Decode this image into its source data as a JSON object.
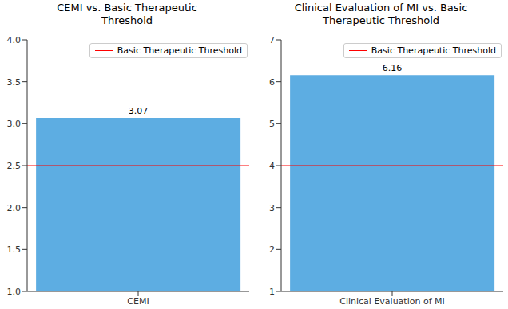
{
  "chart_data": [
    {
      "type": "bar",
      "title": "CEMI vs. Basic Therapeutic Threshold",
      "categories": [
        "CEMI"
      ],
      "values": [
        3.07
      ],
      "color": "#5dade2",
      "ylim": [
        1,
        4
      ],
      "yticks": [
        {
          "value": 1,
          "label": "1.0"
        },
        1.5,
        {
          "value": 2,
          "label": "2.0"
        },
        2.5,
        {
          "value": 3,
          "label": "3.0"
        },
        3.5,
        {
          "value": 4,
          "label": "4.0"
        }
      ],
      "grid": false,
      "data_labels": true,
      "legend": "upper right",
      "reference_line": {
        "name": "Basic Therapeutic Threshold",
        "value": 2.5,
        "color": "#ff0000"
      }
    },
    {
      "type": "bar",
      "title": "Clinical Evaluation of MI vs. Basic Therapeutic Threshold",
      "categories": [
        "Clinical Evaluation of MI"
      ],
      "values": [
        6.16
      ],
      "color": "#5dade2",
      "ylim": [
        1,
        7
      ],
      "yticks": [
        1,
        2,
        3,
        4,
        5,
        6,
        7
      ],
      "grid": false,
      "data_labels": true,
      "legend": "upper right",
      "reference_line": {
        "name": "Basic Therapeutic Threshold",
        "value": 4,
        "color": "#ff0000"
      }
    }
  ]
}
